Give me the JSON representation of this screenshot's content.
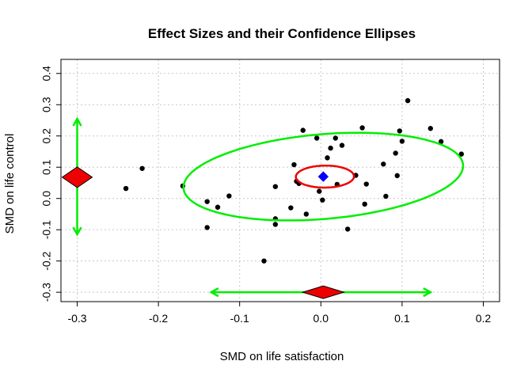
{
  "chart_data": {
    "type": "scatter",
    "title": "Effect Sizes and their Confidence Ellipses",
    "xlabel": "SMD on life satisfaction",
    "ylabel": "SMD on life control",
    "xlim": [
      -0.32,
      0.22
    ],
    "ylim": [
      -0.33,
      0.445
    ],
    "xticks": [
      -0.3,
      -0.2,
      -0.1,
      0.0,
      0.1,
      0.2
    ],
    "xtick_labels": [
      "-0.3",
      "-0.2",
      "-0.1",
      "0.0",
      "0.1",
      "0.2"
    ],
    "yticks": [
      -0.3,
      -0.2,
      -0.1,
      0.0,
      0.1,
      0.2,
      0.3,
      0.4
    ],
    "ytick_labels": [
      "-0.3",
      "-0.2",
      "-0.1",
      "0.0",
      "0.1",
      "0.2",
      "0.3",
      "0.4"
    ],
    "grid": true,
    "colors": {
      "points": "#000000",
      "ci_ellipse": "#00ee00",
      "pooled_ellipse": "#ee0000",
      "pooled_point": "#0000ff",
      "diamond_fill": "#ee0000",
      "arrows": "#00ee00",
      "grid": "#c8c8c8"
    },
    "points": [
      {
        "x": -0.24,
        "y": 0.032
      },
      {
        "x": -0.22,
        "y": 0.096
      },
      {
        "x": -0.17,
        "y": 0.04
      },
      {
        "x": -0.14,
        "y": -0.01
      },
      {
        "x": -0.14,
        "y": -0.093
      },
      {
        "x": -0.127,
        "y": -0.028
      },
      {
        "x": -0.113,
        "y": 0.008
      },
      {
        "x": -0.07,
        "y": -0.2
      },
      {
        "x": -0.056,
        "y": 0.038
      },
      {
        "x": -0.056,
        "y": -0.065
      },
      {
        "x": -0.056,
        "y": -0.083
      },
      {
        "x": -0.037,
        "y": -0.03
      },
      {
        "x": -0.033,
        "y": 0.108
      },
      {
        "x": -0.03,
        "y": 0.055
      },
      {
        "x": -0.027,
        "y": 0.048
      },
      {
        "x": -0.022,
        "y": 0.218
      },
      {
        "x": -0.018,
        "y": -0.05
      },
      {
        "x": -0.005,
        "y": 0.193
      },
      {
        "x": -0.002,
        "y": 0.023
      },
      {
        "x": 0.002,
        "y": -0.005
      },
      {
        "x": 0.008,
        "y": 0.13
      },
      {
        "x": 0.012,
        "y": 0.161
      },
      {
        "x": 0.018,
        "y": 0.193
      },
      {
        "x": 0.02,
        "y": 0.045
      },
      {
        "x": 0.026,
        "y": 0.17
      },
      {
        "x": 0.033,
        "y": -0.098
      },
      {
        "x": 0.043,
        "y": 0.074
      },
      {
        "x": 0.051,
        "y": 0.226
      },
      {
        "x": 0.054,
        "y": -0.018
      },
      {
        "x": 0.056,
        "y": 0.046
      },
      {
        "x": 0.077,
        "y": 0.11
      },
      {
        "x": 0.08,
        "y": 0.007
      },
      {
        "x": 0.092,
        "y": 0.145
      },
      {
        "x": 0.094,
        "y": 0.073
      },
      {
        "x": 0.097,
        "y": 0.216
      },
      {
        "x": 0.1,
        "y": 0.183
      },
      {
        "x": 0.107,
        "y": 0.313
      },
      {
        "x": 0.135,
        "y": 0.224
      },
      {
        "x": 0.148,
        "y": 0.182
      },
      {
        "x": 0.173,
        "y": 0.142
      }
    ],
    "pooled_estimate": {
      "x": 0.003,
      "y": 0.07
    },
    "confidence_ellipse": {
      "center": [
        0.003,
        0.07
      ],
      "semi_axis_x_dir": 0.18,
      "semi_axis_y_dir": 0.13,
      "rotation_deg": 25
    },
    "pooled_ellipse": {
      "center": [
        0.005,
        0.07
      ],
      "semi_axis_x_dir": 0.036,
      "semi_axis_y_dir": 0.035,
      "rotation_deg": 28
    },
    "x_interval": {
      "low": -0.135,
      "high": 0.135,
      "center": 0.003,
      "y": -0.3
    },
    "y_interval": {
      "low": -0.115,
      "high": 0.255,
      "center": 0.068,
      "x": -0.3
    }
  }
}
